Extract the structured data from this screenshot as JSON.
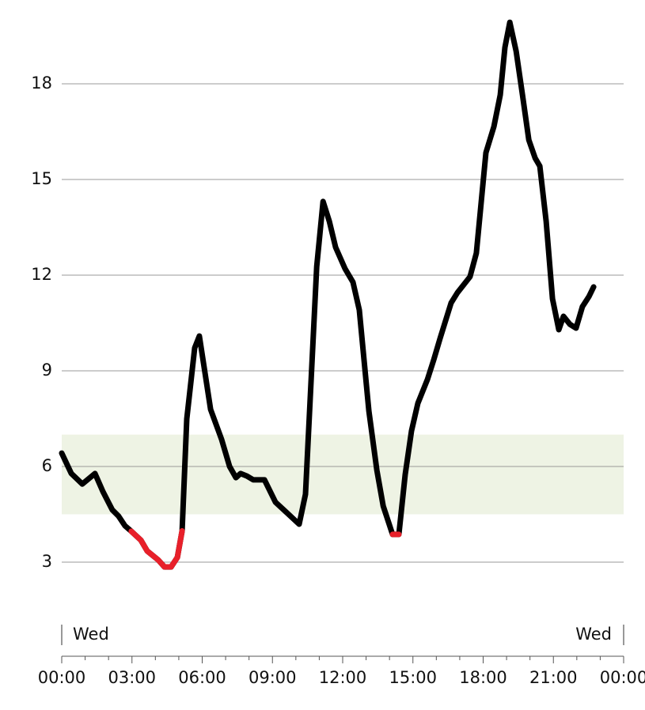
{
  "chart_data": {
    "type": "line",
    "x": [
      0,
      0.41,
      0.88,
      1.42,
      1.76,
      2.16,
      2.43,
      2.7,
      2.97,
      3.38,
      3.65,
      4.12,
      4.39,
      4.67,
      4.94,
      5.14,
      5.34,
      5.68,
      5.88,
      6.36,
      6.83,
      7.17,
      7.44,
      7.64,
      7.91,
      8.18,
      8.66,
      9.13,
      9.6,
      10.14,
      10.41,
      10.89,
      11.16,
      11.43,
      11.7,
      12.1,
      12.44,
      12.71,
      13.12,
      13.46,
      13.73,
      14.13,
      14.4,
      14.67,
      14.94,
      15.21,
      15.62,
      15.89,
      16.16,
      16.63,
      16.9,
      17.44,
      17.71,
      18.12,
      18.46,
      18.73,
      18.93,
      19.14,
      19.41,
      19.68,
      19.95,
      20.22,
      20.42,
      20.69,
      20.96,
      21.23,
      21.43,
      21.7,
      21.97,
      22.24,
      22.52,
      22.72
    ],
    "series": [
      {
        "color": "#000000",
        "values": [
          6.42,
          5.78,
          5.45,
          5.78,
          5.21,
          4.64,
          4.44,
          4.14,
          3.97,
          3.69,
          3.35,
          3.07,
          2.85,
          2.85,
          3.15,
          3.98,
          7.49,
          9.72,
          10.09,
          7.79,
          6.84,
          6.0,
          5.65,
          5.78,
          5.7,
          5.58,
          5.58,
          4.88,
          4.56,
          4.19,
          5.13,
          12.27,
          14.31,
          13.69,
          12.87,
          12.2,
          11.78,
          10.91,
          7.74,
          5.88,
          4.76,
          3.87,
          3.87,
          5.75,
          7.12,
          7.98,
          8.73,
          9.35,
          10.02,
          11.13,
          11.45,
          11.95,
          12.69,
          15.84,
          16.66,
          17.65,
          19.14,
          19.93,
          19.02,
          17.65,
          16.24,
          15.67,
          15.42,
          13.69,
          11.26,
          10.29,
          10.71,
          10.46,
          10.34,
          11.01,
          11.33,
          11.63
        ]
      }
    ],
    "low": {
      "threshold": 4,
      "color": "#e8202a"
    },
    "target_range": [
      4.5,
      7
    ],
    "target_color": "#eef3e4",
    "xlim": [
      0,
      24
    ],
    "xticks": [
      {
        "value": 0,
        "label": "00:00"
      },
      {
        "value": 3,
        "label": "03:00"
      },
      {
        "value": 6,
        "label": "06:00"
      },
      {
        "value": 9,
        "label": "09:00"
      },
      {
        "value": 12,
        "label": "12:00"
      },
      {
        "value": 15,
        "label": "15:00"
      },
      {
        "value": 18,
        "label": "18:00"
      },
      {
        "value": 21,
        "label": "21:00"
      },
      {
        "value": 24,
        "label": "00:00"
      }
    ],
    "ylim": [
      1,
      20.5
    ],
    "yticks": [
      3,
      6,
      9,
      12,
      15,
      18
    ],
    "grid": true,
    "annotations": [
      "Wed",
      "Wed"
    ]
  }
}
